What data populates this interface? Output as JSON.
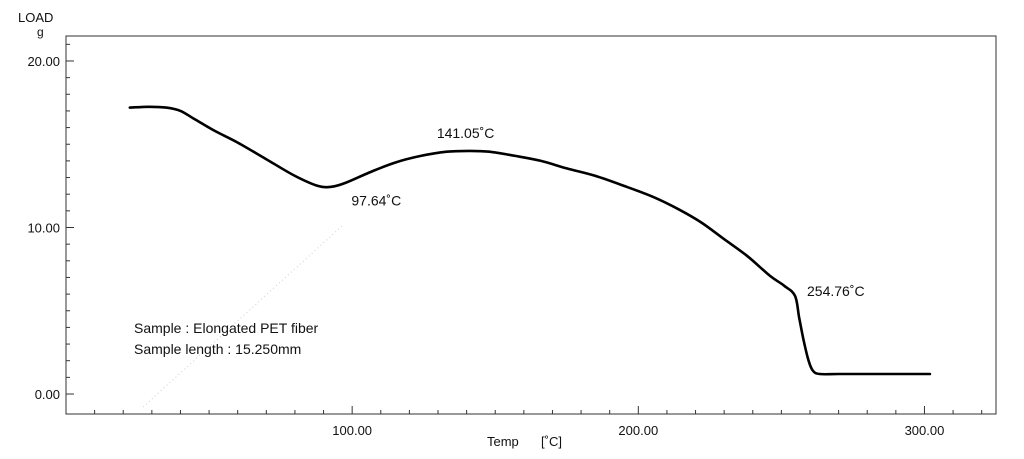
{
  "chart_data": {
    "type": "line",
    "ylabel": "LOAD",
    "yunit": "g",
    "xlabel": "Temp",
    "xunit": "[˚C]",
    "xlim": [
      0,
      325
    ],
    "ylim": [
      -1.2,
      21.5
    ],
    "x_ticks": [
      {
        "value": 100,
        "label": "100.00"
      },
      {
        "value": 200,
        "label": "200.00"
      },
      {
        "value": 300,
        "label": "300.00"
      }
    ],
    "y_ticks": [
      {
        "value": 0,
        "label": "0.00"
      },
      {
        "value": 10,
        "label": "10.00"
      },
      {
        "value": 20,
        "label": "20.00"
      }
    ],
    "grid": false,
    "series": [
      {
        "color": "#000000",
        "x": [
          22.3,
          29,
          35,
          40,
          45,
          52,
          60,
          70,
          80,
          88,
          93,
          98,
          106,
          115,
          124,
          133,
          141.05,
          148,
          157,
          166,
          175,
          185,
          195,
          205,
          214,
          222,
          230,
          238,
          246,
          251,
          254.76,
          256.2,
          257.8,
          259.5,
          261,
          263.4,
          270,
          285,
          300,
          301.9
        ],
        "y": [
          17.2,
          17.25,
          17.2,
          17.0,
          16.5,
          15.8,
          15.1,
          14.1,
          13.1,
          12.5,
          12.45,
          12.7,
          13.3,
          13.9,
          14.3,
          14.55,
          14.6,
          14.55,
          14.3,
          14.0,
          13.55,
          13.1,
          12.5,
          11.85,
          11.1,
          10.3,
          9.3,
          8.3,
          7.1,
          6.5,
          5.9,
          4.6,
          3.2,
          2.0,
          1.4,
          1.2,
          1.2,
          1.2,
          1.2,
          1.2
        ]
      }
    ],
    "annotations": [
      {
        "text": "141.05˚C",
        "x": 141.05,
        "y": 14.6
      },
      {
        "text": "97.64˚C",
        "x": 97.64,
        "y": 12.45
      },
      {
        "text": "254.76˚C",
        "x": 254.76,
        "y": 5.9
      }
    ],
    "notes": [
      "Sample : Elongated PET fiber",
      "Sample length : 15.250mm"
    ]
  }
}
